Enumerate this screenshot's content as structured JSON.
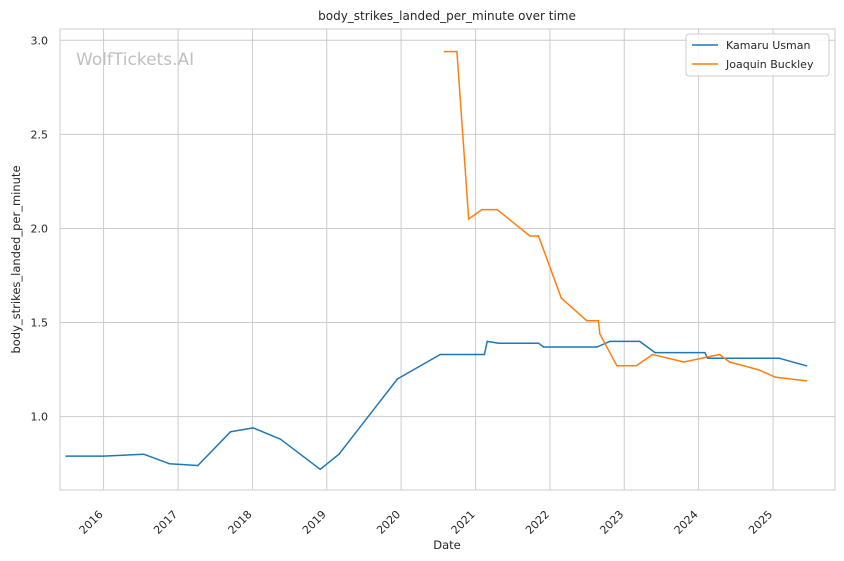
{
  "chart_data": {
    "type": "line",
    "title": "body_strikes_landed_per_minute over time",
    "xlabel": "Date",
    "ylabel": "body_strikes_landed_per_minute",
    "watermark": "WolfTickets.AI",
    "xlim": [
      "2015-06-01",
      "2025-11-01"
    ],
    "ylim": [
      0.61,
      3.06
    ],
    "x_ticks": [
      "2016",
      "2017",
      "2018",
      "2019",
      "2020",
      "2021",
      "2022",
      "2023",
      "2024",
      "2025"
    ],
    "y_ticks": [
      "1.0",
      "1.5",
      "2.0",
      "2.5",
      "3.0"
    ],
    "grid": true,
    "legend_position": "top-right",
    "series": [
      {
        "name": "Kamaru Usman",
        "color": "#1f77b4",
        "points": [
          {
            "x": "2015-07-01",
            "y": 0.79
          },
          {
            "x": "2016-01-01",
            "y": 0.79
          },
          {
            "x": "2016-07-16",
            "y": 0.8
          },
          {
            "x": "2016-11-19",
            "y": 0.75
          },
          {
            "x": "2017-04-08",
            "y": 0.74
          },
          {
            "x": "2017-09-16",
            "y": 0.92
          },
          {
            "x": "2018-01-05",
            "y": 0.94
          },
          {
            "x": "2018-05-19",
            "y": 0.88
          },
          {
            "x": "2018-11-30",
            "y": 0.72
          },
          {
            "x": "2019-03-02",
            "y": 0.8
          },
          {
            "x": "2019-12-14",
            "y": 1.2
          },
          {
            "x": "2020-07-11",
            "y": 1.33
          },
          {
            "x": "2021-02-13",
            "y": 1.33
          },
          {
            "x": "2021-02-27",
            "y": 1.4
          },
          {
            "x": "2021-04-24",
            "y": 1.39
          },
          {
            "x": "2021-11-06",
            "y": 1.39
          },
          {
            "x": "2021-12-01",
            "y": 1.37
          },
          {
            "x": "2022-08-20",
            "y": 1.37
          },
          {
            "x": "2022-10-22",
            "y": 1.4
          },
          {
            "x": "2023-03-18",
            "y": 1.4
          },
          {
            "x": "2023-06-01",
            "y": 1.34
          },
          {
            "x": "2024-02-01",
            "y": 1.34
          },
          {
            "x": "2024-02-15",
            "y": 1.31
          },
          {
            "x": "2025-02-01",
            "y": 1.31
          },
          {
            "x": "2025-06-14",
            "y": 1.27
          }
        ]
      },
      {
        "name": "Joaquin Buckley",
        "color": "#ff7f0e",
        "points": [
          {
            "x": "2020-08-01",
            "y": 2.94
          },
          {
            "x": "2020-10-01",
            "y": 2.94
          },
          {
            "x": "2020-11-28",
            "y": 2.05
          },
          {
            "x": "2021-02-01",
            "y": 2.1
          },
          {
            "x": "2021-04-17",
            "y": 2.1
          },
          {
            "x": "2021-09-25",
            "y": 1.96
          },
          {
            "x": "2021-11-06",
            "y": 1.96
          },
          {
            "x": "2022-02-26",
            "y": 1.63
          },
          {
            "x": "2022-07-01",
            "y": 1.51
          },
          {
            "x": "2022-08-27",
            "y": 1.51
          },
          {
            "x": "2022-09-03",
            "y": 1.44
          },
          {
            "x": "2022-11-26",
            "y": 1.27
          },
          {
            "x": "2023-03-01",
            "y": 1.27
          },
          {
            "x": "2023-05-20",
            "y": 1.33
          },
          {
            "x": "2023-10-21",
            "y": 1.29
          },
          {
            "x": "2024-04-13",
            "y": 1.33
          },
          {
            "x": "2024-06-01",
            "y": 1.29
          },
          {
            "x": "2024-10-19",
            "y": 1.25
          },
          {
            "x": "2025-01-11",
            "y": 1.21
          },
          {
            "x": "2025-06-14",
            "y": 1.19
          }
        ]
      }
    ]
  }
}
